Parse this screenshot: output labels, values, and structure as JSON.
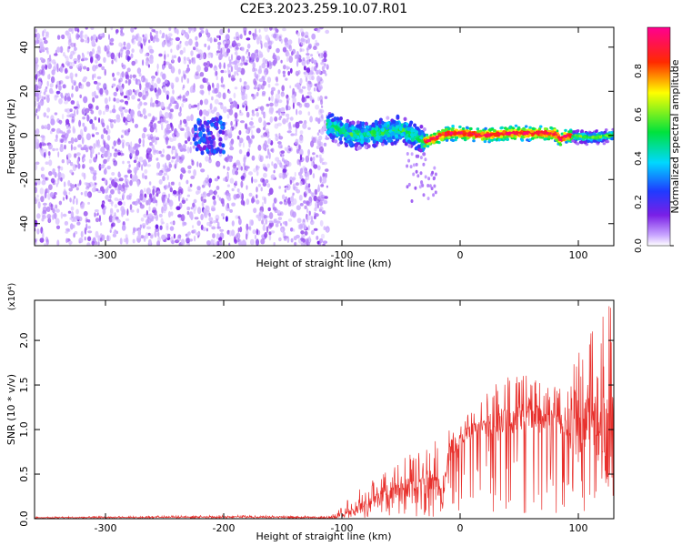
{
  "title": "C2E3.2023.259.10.07.R01",
  "colors": {
    "snr_line": "#e8302c",
    "scatter_purple": "#7a1fe6",
    "axis": "#000000"
  },
  "chart_data": [
    {
      "type": "heatmap",
      "xlabel": "Height of straight line (km)",
      "ylabel": "Frequency (Hz)",
      "xlim": [
        -360,
        130
      ],
      "ylim": [
        -50,
        49
      ],
      "xticks": [
        -300,
        -200,
        -100,
        0,
        100
      ],
      "yticks": [
        -40,
        -20,
        0,
        20,
        40
      ],
      "colorbar": {
        "label": "Normalized spectral amplitude",
        "range": [
          0.0,
          1.0
        ],
        "ticks": [
          "0.0",
          "0.2",
          "0.4",
          "0.6",
          "0.8"
        ],
        "colormap": "white-purple-blue-cyan-green-yellow-red-magenta"
      },
      "regions": [
        {
          "x_range": [
            -360,
            -112
          ],
          "y_range": [
            -50,
            49
          ],
          "amplitude": 0.1,
          "note": "scattered noise"
        },
        {
          "x_range": [
            -225,
            -200
          ],
          "y_range": [
            -8,
            8
          ],
          "amplitude": 0.3
        },
        {
          "x_range": [
            -112,
            -30
          ],
          "y_range": [
            -10,
            12
          ],
          "amplitude": 0.4
        },
        {
          "x_range": [
            -30,
            130
          ],
          "y_range": [
            -3,
            3
          ],
          "amplitude": 0.9
        }
      ],
      "ridge_x": [
        -110,
        -90,
        -70,
        -50,
        -40,
        -30,
        -10,
        0,
        20,
        40,
        60,
        80,
        85,
        90,
        110,
        130
      ],
      "ridge_y": [
        4,
        0,
        1,
        3,
        0,
        -3,
        1,
        1,
        0,
        1,
        1,
        1,
        -2,
        0,
        -1,
        0
      ]
    },
    {
      "type": "line",
      "xlabel": "Height of straight line (km)",
      "ylabel": "SNR (10 * v/v)",
      "yscale_label": "(x10⁴)",
      "xlim": [
        -360,
        130
      ],
      "ylim": [
        0,
        2.45
      ],
      "xticks": [
        -300,
        -200,
        -100,
        0,
        100
      ],
      "yticks": [
        "0.0",
        "0.5",
        "1.0",
        "1.5",
        "2.0"
      ],
      "envelope": {
        "x": [
          -360,
          -200,
          -110,
          -100,
          -80,
          -60,
          -40,
          -20,
          -15,
          -10,
          0,
          20,
          40,
          60,
          80,
          90,
          100,
          110,
          120,
          130
        ],
        "y_mid": [
          0.01,
          0.02,
          0.01,
          0.05,
          0.15,
          0.25,
          0.35,
          0.45,
          0.2,
          0.7,
          0.9,
          1.05,
          1.1,
          1.15,
          1.12,
          1.0,
          0.9,
          1.2,
          0.8,
          1.0
        ],
        "y_max": [
          0.02,
          0.04,
          0.03,
          0.15,
          0.4,
          0.55,
          0.75,
          0.9,
          0.5,
          1.0,
          1.15,
          1.4,
          1.65,
          1.6,
          1.5,
          1.45,
          2.0,
          2.2,
          2.4,
          2.45
        ]
      }
    }
  ]
}
